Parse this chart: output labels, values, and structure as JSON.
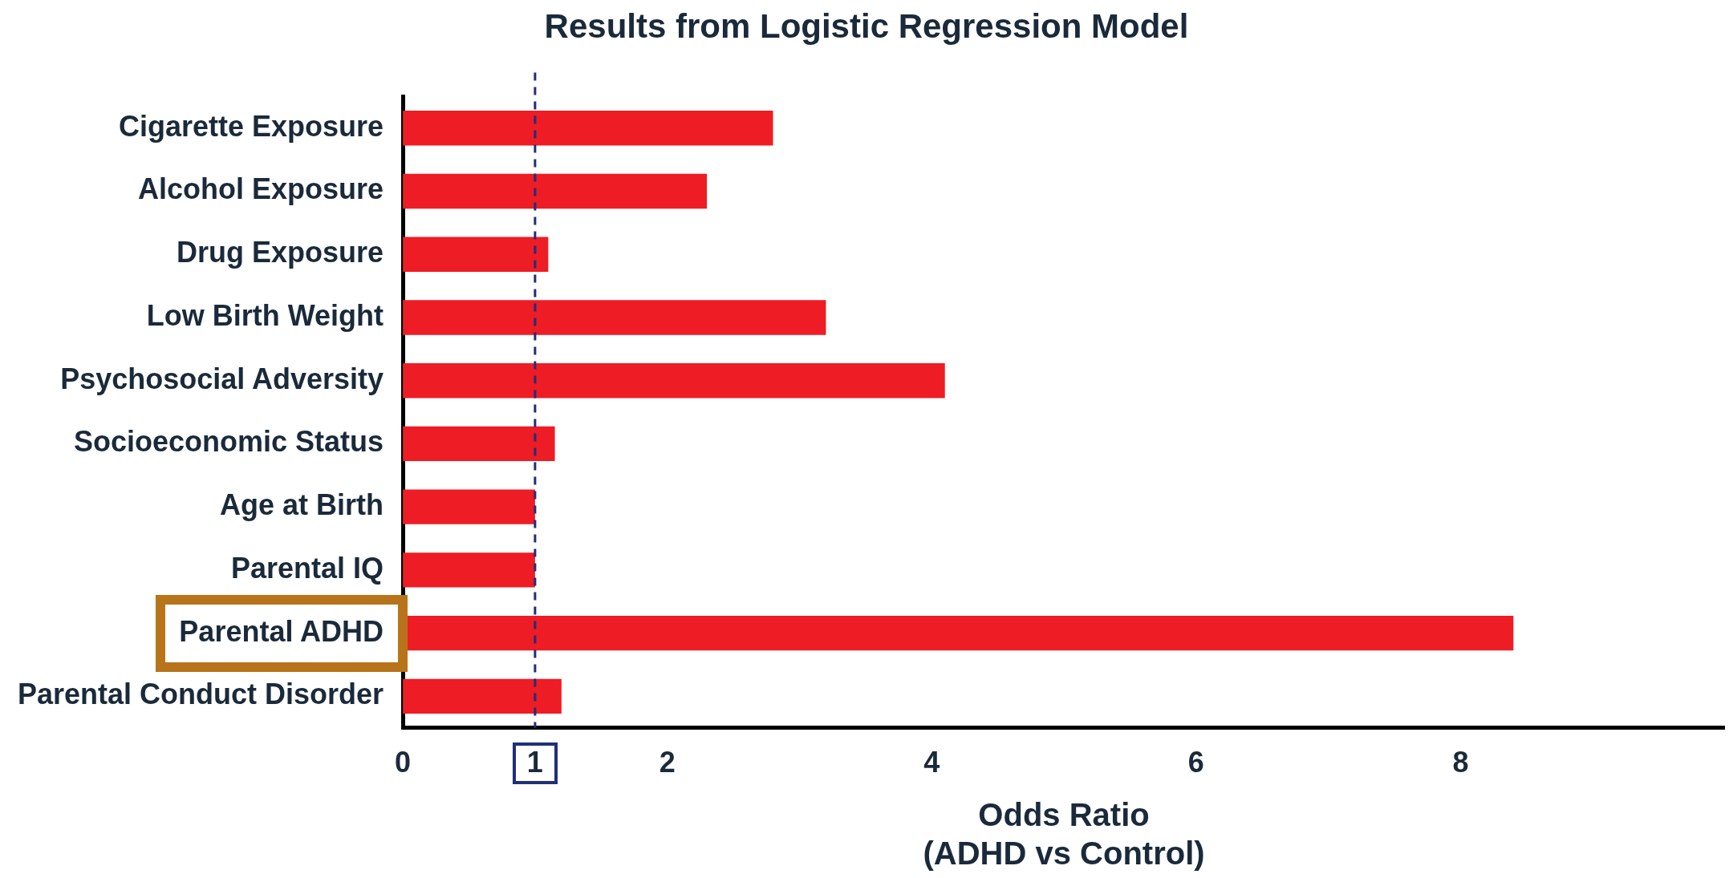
{
  "chart_data": {
    "type": "bar",
    "orientation": "horizontal",
    "title": "Results from Logistic Regression Model",
    "xlabel": "Odds Ratio\n(ADHD vs Control)",
    "categories": [
      "Cigarette Exposure",
      "Alcohol Exposure",
      "Drug Exposure",
      "Low Birth Weight",
      "Psychosocial Adversity",
      "Socioeconomic Status",
      "Age at Birth",
      "Parental IQ",
      "Parental ADHD",
      "Parental Conduct Disorder"
    ],
    "values": [
      2.8,
      2.3,
      1.1,
      3.2,
      4.1,
      1.15,
      1.0,
      1.0,
      8.4,
      1.2
    ],
    "color": "#ee1c24",
    "xlim": [
      0,
      10
    ],
    "xticks": [
      0,
      1,
      2,
      4,
      6,
      8
    ],
    "ref_lines": [
      {
        "axis": "x",
        "value": 1,
        "color": "#1f2f7a",
        "line_style": "dashed"
      }
    ],
    "grid": false,
    "legend": false
  }
}
